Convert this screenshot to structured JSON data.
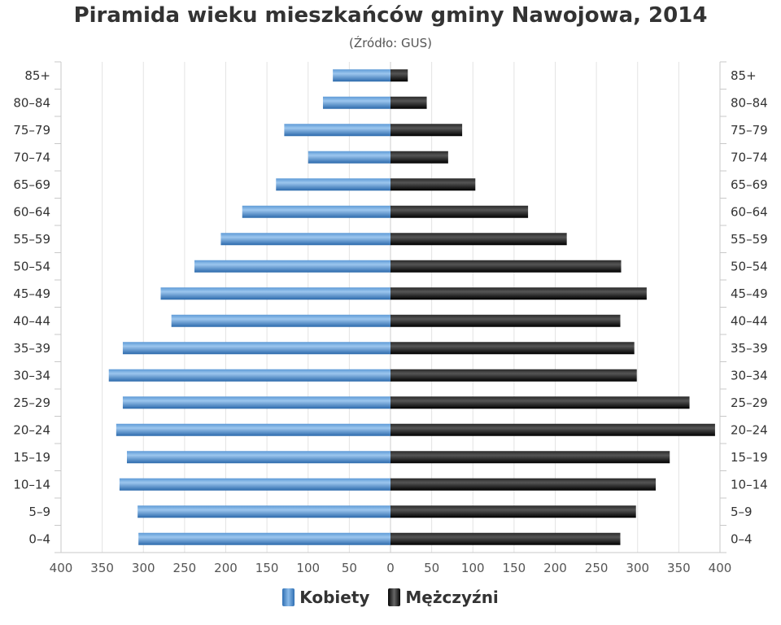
{
  "chart_data": {
    "type": "bar",
    "orientation": "horizontal",
    "variant": "population-pyramid",
    "title": "Piramida wieku mieszkańców gminy Nawojowa, 2014",
    "subtitle": "(Źródło: GUS)",
    "categories": [
      "85+",
      "80–84",
      "75–79",
      "70–74",
      "65–69",
      "60–64",
      "55–59",
      "50–54",
      "45–49",
      "40–44",
      "35–39",
      "30–34",
      "25–29",
      "20–24",
      "15–19",
      "10–14",
      "5–9",
      "0–4"
    ],
    "series": [
      {
        "name": "Kobiety",
        "side": "left",
        "color": "#3a7cc1",
        "values": [
          70,
          82,
          129,
          100,
          139,
          180,
          206,
          238,
          279,
          266,
          325,
          342,
          325,
          333,
          320,
          329,
          307,
          306
        ]
      },
      {
        "name": "Mężczyźni",
        "side": "right",
        "color": "#111111",
        "values": [
          21,
          44,
          87,
          70,
          103,
          167,
          214,
          280,
          311,
          279,
          296,
          299,
          363,
          394,
          339,
          322,
          298,
          279
        ]
      }
    ],
    "xlim": [
      -400,
      400
    ],
    "xticks": [
      400,
      350,
      300,
      250,
      200,
      150,
      100,
      50,
      0,
      50,
      100,
      150,
      200,
      250,
      300,
      350,
      400
    ],
    "grid": true,
    "legend_position": "bottom"
  }
}
